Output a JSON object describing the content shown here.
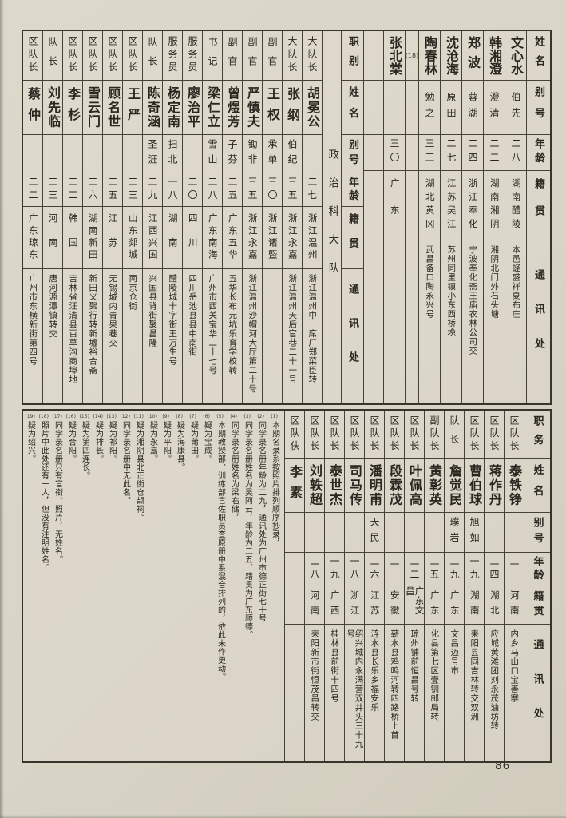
{
  "page": {
    "number": "86"
  },
  "colors": {
    "paper": "#d8d4c6",
    "ink": "#29271f",
    "border": "#454236"
  },
  "top_table": {
    "right_header": [
      "姓名",
      "别号",
      "年龄",
      "籍贯",
      "通讯处"
    ],
    "mid_header": [
      "职别",
      "姓名",
      "别号",
      "年龄",
      "籍贯",
      "通讯处"
    ],
    "section_label": "政治科大队",
    "note_ref": "(18)",
    "columns": [
      {
        "kind": "L",
        "role": "区队长",
        "name": "蔡仲",
        "alias": "",
        "age": "二二",
        "origin": "广东琼东",
        "address": "广州市东横新街第四号"
      },
      {
        "kind": "L",
        "role": "队长",
        "name": "刘先临",
        "alias": "",
        "age": "二三",
        "origin": "河南",
        "address": "唐河源潭镇转交"
      },
      {
        "kind": "L",
        "role": "区队长",
        "name": "李杉",
        "alias": "",
        "age": "二二",
        "origin": "韩国",
        "address": "吉林省汪清县百草沟商埠地"
      },
      {
        "kind": "L",
        "role": "区队长",
        "name": "雪云门",
        "alias": "",
        "age": "二六",
        "origin": "湖南新田",
        "address": "新田义聚行转新墟裕合斋"
      },
      {
        "kind": "L",
        "role": "区队长",
        "name": "顾名世",
        "alias": "",
        "age": "二五",
        "origin": "江苏",
        "address": "无锡城内青果巷交"
      },
      {
        "kind": "L",
        "role": "区队长",
        "name": "王严",
        "alias": "",
        "age": "二三",
        "origin": "山东郯城",
        "address": "南京仓街"
      },
      {
        "kind": "L",
        "role": "队长",
        "name": "陈奇涵",
        "alias": "圣涯",
        "age": "二九",
        "origin": "江西兴国",
        "address": "兴国县背街聚昌隆"
      },
      {
        "kind": "L",
        "role": "服务员",
        "name": "杨定南",
        "alias": "扫北",
        "age": "一八",
        "origin": "湖南",
        "address": "醴陵城十字街王万生号"
      },
      {
        "kind": "L",
        "role": "服务员",
        "name": "廖治平",
        "alias": "",
        "age": "二〇",
        "origin": "四川",
        "address": "四川岳池县县中南街"
      },
      {
        "kind": "L",
        "role": "书记",
        "name": "梁仁立",
        "alias": "雪山",
        "age": "二八",
        "origin": "广东南海",
        "address": "广州市西关宝华二十七号"
      },
      {
        "kind": "L",
        "role": "副官",
        "name": "曾煜芳",
        "alias": "子芬",
        "age": "二五",
        "origin": "广东五华",
        "address": "五华长布元坑乐育学校转"
      },
      {
        "kind": "L",
        "role": "副官",
        "name": "严慎夫",
        "alias": "锄非",
        "age": "三五",
        "origin": "浙江永嘉",
        "address": "浙江温州沙帽河大厅第二十号"
      },
      {
        "kind": "L",
        "role": "副官",
        "name": "王权",
        "alias": "承单",
        "age": "三〇",
        "origin": "浙江诸暨",
        "address": ""
      },
      {
        "kind": "L",
        "role": "大队长",
        "name": "张纲",
        "alias": "伯纪",
        "age": "三五",
        "origin": "浙江永嘉",
        "address": "浙江温州天后官巷二十一号"
      },
      {
        "kind": "L",
        "role": "大队长",
        "name": "胡冕公",
        "alias": "",
        "age": "二七",
        "origin": "浙江温州",
        "address": "浙江温州中一席厂郑菜臣转"
      },
      {
        "kind": "label"
      },
      {
        "kind": "HL"
      },
      {
        "kind": "empty"
      },
      {
        "kind": "R",
        "name": "张北棠",
        "alias": "",
        "age": "三〇",
        "origin": "广东",
        "address": ""
      },
      {
        "kind": "note"
      },
      {
        "kind": "R",
        "name": "陶春林",
        "alias": "勉之",
        "age": "三三",
        "origin": "湖北黄冈",
        "address": "武昌备口陶永兴号"
      },
      {
        "kind": "R",
        "name": "沈沧海",
        "alias": "原田",
        "age": "二七",
        "origin": "江苏吴江",
        "address": "苏州同里镇小东西桥堍"
      },
      {
        "kind": "R",
        "name": "郑波",
        "alias": "蓉湖",
        "age": "二四",
        "origin": "浙江奉化",
        "address": "宁波奉化斋王庙农林公司交"
      },
      {
        "kind": "R",
        "name": "韩湘澄",
        "alias": "澄清",
        "age": "二二",
        "origin": "湖南湘阴",
        "address": "湘阴北门外石头塘"
      },
      {
        "kind": "R",
        "name": "文心水",
        "alias": "伯先",
        "age": "二八",
        "origin": "湖南醴陵",
        "address": "本邑蛏盛祥夏布庄"
      },
      {
        "kind": "HR"
      }
    ]
  },
  "bottom_table": {
    "header": [
      "职务",
      "姓名",
      "别号",
      "年龄",
      "籍贯",
      "通讯处"
    ],
    "columns": [
      {
        "kind": "B",
        "role": "区队伕",
        "name": "李素",
        "alias": "",
        "age": "",
        "origin": "",
        "address": ""
      },
      {
        "kind": "B",
        "role": "区队长",
        "name": "刘轶超",
        "alias": "",
        "age": "二八",
        "origin": "河南",
        "address": "耒阳新市街恒茂昌转交"
      },
      {
        "kind": "B",
        "role": "区队长",
        "name": "泰世杰",
        "alias": "",
        "age": "一九",
        "origin": "广西",
        "address": "桂林县前街十四号"
      },
      {
        "kind": "B",
        "role": "区队长",
        "name": "司马传",
        "alias": "",
        "age": "一八",
        "origin": "浙江",
        "address": "绍兴城内永满营双井头三十九号"
      },
      {
        "kind": "B",
        "role": "区队长",
        "name": "潘明甫",
        "alias": "天民",
        "age": "二六",
        "origin": "江苏",
        "address": "涟水县长乐乡福安乐"
      },
      {
        "kind": "B",
        "role": "区队长",
        "name": "段霖茂",
        "alias": "",
        "age": "二一",
        "origin": "安徽",
        "address": "蕲水县鸡鸣河转四路桥上首"
      },
      {
        "kind": "B",
        "role": "区队长",
        "name": "叶佩高",
        "alias": "",
        "age": "二二",
        "origin": "广东文昌",
        "address": "琼州铺前恒昌号转"
      },
      {
        "kind": "B",
        "role": "副队长",
        "name": "黄彰英",
        "alias": "",
        "age": "二五",
        "origin": "广东",
        "address": "化县第七区壹钏邮局转"
      },
      {
        "kind": "B",
        "role": "队长",
        "name": "詹觉民",
        "alias": "璞岩",
        "age": "二九",
        "origin": "广东",
        "address": "文昌迈号市"
      },
      {
        "kind": "B",
        "role": "区队长",
        "name": "曹伯球",
        "alias": "旭如",
        "age": "一九",
        "origin": "湖南",
        "address": "耒阳县同吉林转交双洲"
      },
      {
        "kind": "B",
        "role": "区队长",
        "name": "蒋作丹",
        "alias": "",
        "age": "二四",
        "origin": "湖北",
        "address": "应城黄滩团刘永茂油坊转"
      },
      {
        "kind": "B",
        "role": "区队长",
        "name": "泰铁铮",
        "alias": "",
        "age": "二一",
        "origin": "河南",
        "address": "内乡马山口宝善寨"
      },
      {
        "kind": "HB"
      }
    ],
    "notes": {
      "items": [
        {
          "n": "1",
          "t": "本期名录系按照片排列顺序抄录，"
        },
        {
          "n": "2",
          "t": "同学录名册年龄为二九，通讯处为广州市德正街七十号"
        },
        {
          "n": "3",
          "t": "同学录名册姓名为吴阿云，年龄为二五，籍贯为广东顺德。"
        },
        {
          "n": "4",
          "t": "同学录名册姓名为梁右储，"
        },
        {
          "n": "5",
          "t": "本期教授部、训练部官佐职员查原册中系混合排列的，依此未作更动。"
        },
        {
          "n": "6",
          "t": "疑为宝成。"
        },
        {
          "n": "7",
          "t": "疑为莆田。"
        },
        {
          "n": "8",
          "t": "疑为海康县。"
        },
        {
          "n": "9",
          "t": "疑为平阳。"
        },
        {
          "n": "10",
          "t": "疑为永嘉。"
        },
        {
          "n": "11",
          "t": "疑为湘阴县北正街仓颉祠。"
        },
        {
          "n": "12",
          "t": "同学录名册中无此名。"
        },
        {
          "n": "13",
          "t": "疑为祁阳。"
        },
        {
          "n": "14",
          "t": "疑为排长。"
        },
        {
          "n": "15",
          "t": "疑为第四连长。"
        },
        {
          "n": "16",
          "t": "疑为合阳。"
        },
        {
          "n": "17",
          "t": "同学录名册只有官衔、照片，无姓名。"
        },
        {
          "n": "18",
          "t": "照片中此处还有一人，但没有注明姓名。"
        },
        {
          "n": "19",
          "t": "疑为绍兴。"
        }
      ]
    }
  }
}
